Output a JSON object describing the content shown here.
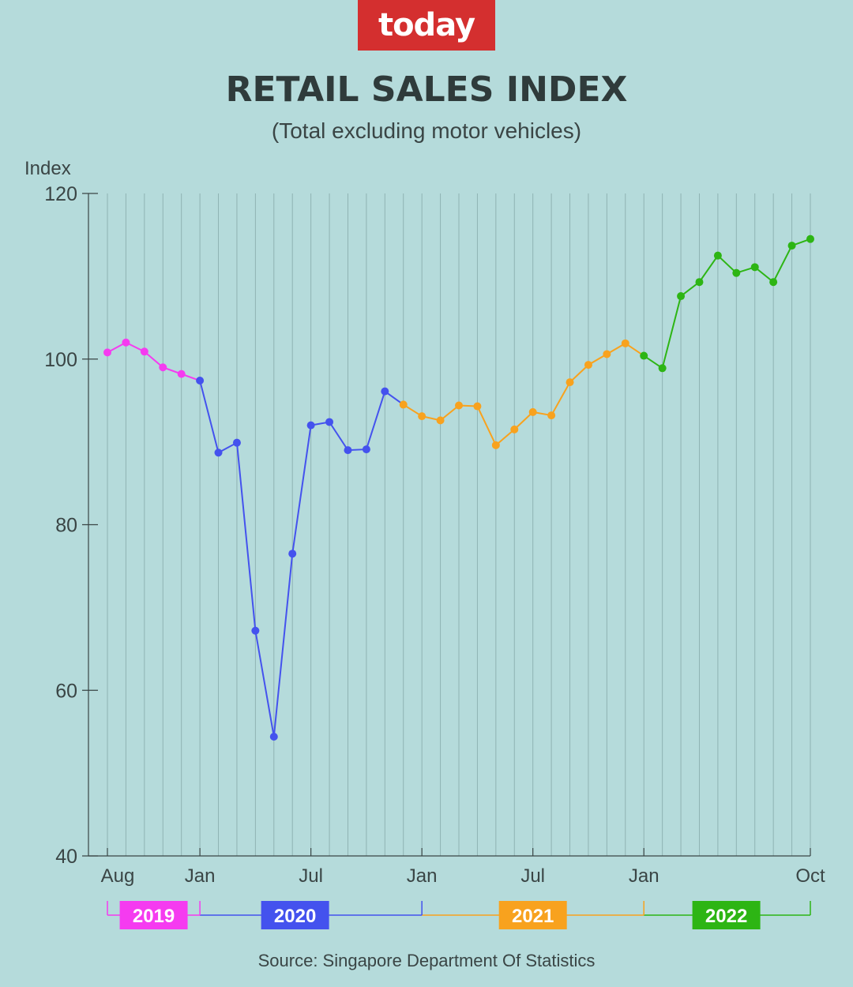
{
  "brand": {
    "logo_text": "today"
  },
  "header": {
    "title": "RETAIL SALES INDEX",
    "subtitle": "(Total excluding motor vehicles)"
  },
  "footer": {
    "source": "Source: Singapore Department Of Statistics"
  },
  "colors": {
    "background": "#b5dbdb",
    "logo_bg": "#d42f2f",
    "2019": "#f53bf0",
    "2020": "#4452ee",
    "2021": "#f8a21e",
    "2022": "#2db514",
    "axis": "#3a4545",
    "grid": "#8fb3b3"
  },
  "chart_data": {
    "type": "line",
    "ylabel": "Index",
    "ylim": [
      40,
      120
    ],
    "yticks": [
      40,
      60,
      80,
      100,
      120
    ],
    "x_tick_labels": [
      {
        "label": "Aug",
        "index": 0
      },
      {
        "label": "Jan",
        "index": 5
      },
      {
        "label": "Jul",
        "index": 11
      },
      {
        "label": "Jan",
        "index": 17
      },
      {
        "label": "Jul",
        "index": 23
      },
      {
        "label": "Jan",
        "index": 29
      },
      {
        "label": "Oct",
        "index": 38
      }
    ],
    "x": [
      "Aug 2019",
      "Sep 2019",
      "Oct 2019",
      "Nov 2019",
      "Dec 2019",
      "Jan 2020",
      "Feb 2020",
      "Mar 2020",
      "Apr 2020",
      "May 2020",
      "Jun 2020",
      "Jul 2020",
      "Aug 2020",
      "Sep 2020",
      "Oct 2020",
      "Nov 2020",
      "Dec 2020",
      "Jan 2021",
      "Feb 2021",
      "Mar 2021",
      "Apr 2021",
      "May 2021",
      "Jun 2021",
      "Jul 2021",
      "Aug 2021",
      "Sep 2021",
      "Oct 2021",
      "Nov 2021",
      "Dec 2021",
      "Jan 2022",
      "Feb 2022",
      "Mar 2022",
      "Apr 2022",
      "May 2022",
      "Jun 2022",
      "Jul 2022",
      "Aug 2022",
      "Sep 2022",
      "Oct 2022"
    ],
    "values": [
      100.8,
      102.0,
      100.9,
      99.0,
      98.2,
      97.4,
      88.7,
      89.9,
      67.2,
      54.4,
      76.5,
      92.0,
      92.4,
      89.0,
      89.1,
      96.1,
      94.5,
      93.1,
      92.6,
      94.4,
      94.3,
      89.6,
      91.5,
      93.6,
      93.2,
      97.2,
      99.3,
      100.6,
      101.9,
      100.4,
      98.9,
      107.6,
      109.3,
      112.5,
      110.4,
      111.1,
      109.3,
      113.7,
      114.5
    ],
    "series": [
      {
        "year": "2019",
        "start": 0,
        "end": 5,
        "color": "#f53bf0"
      },
      {
        "year": "2020",
        "start": 5,
        "end": 16,
        "color": "#4452ee"
      },
      {
        "year": "2021",
        "start": 16,
        "end": 29,
        "color": "#f8a21e"
      },
      {
        "year": "2022",
        "start": 29,
        "end": 38,
        "color": "#2db514"
      }
    ],
    "year_labels": [
      {
        "label": "2019",
        "color": "#f53bf0"
      },
      {
        "label": "2020",
        "color": "#4452ee"
      },
      {
        "label": "2021",
        "color": "#f8a21e"
      },
      {
        "label": "2022",
        "color": "#2db514"
      }
    ],
    "grid": true
  }
}
